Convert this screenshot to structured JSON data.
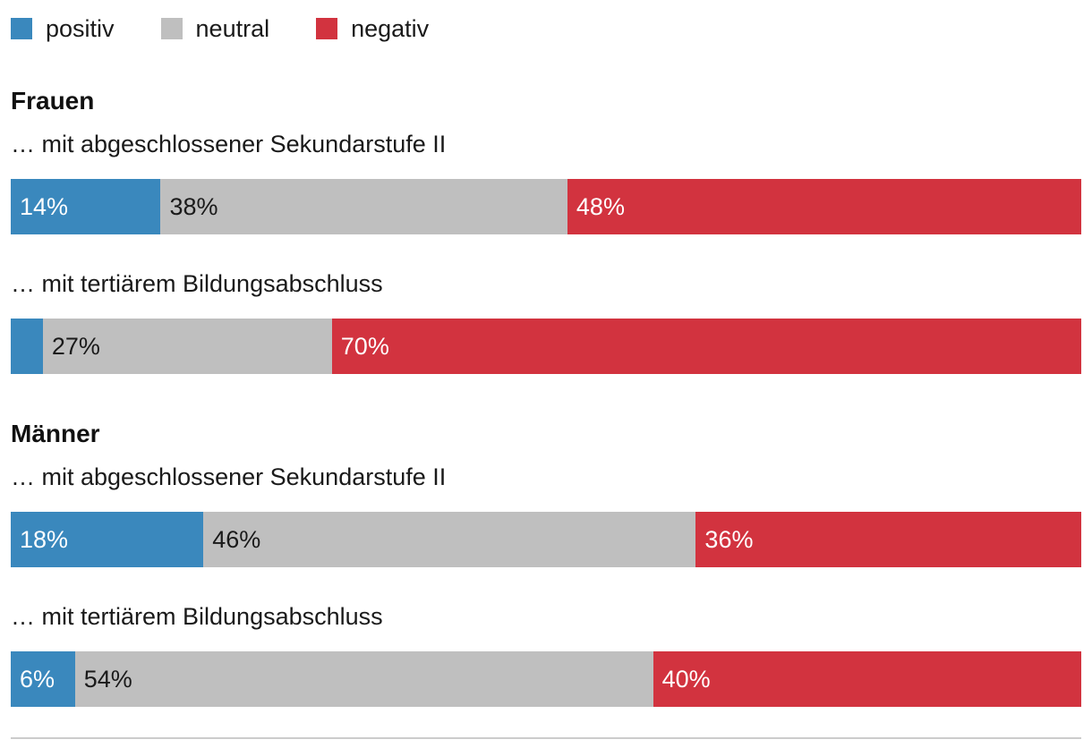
{
  "legend": {
    "items": [
      {
        "label": "positiv",
        "color": "#3a88bd"
      },
      {
        "label": "neutral",
        "color": "#bfbfbf"
      },
      {
        "label": "negativ",
        "color": "#d2333f"
      }
    ]
  },
  "chart_data": {
    "type": "bar",
    "subtype": "horizontal-stacked",
    "unit": "%",
    "xlim": [
      0,
      100
    ],
    "legend_position": "top",
    "grid": false,
    "series_names": [
      "positiv",
      "neutral",
      "negativ"
    ],
    "series_colors": {
      "positiv": "#3a88bd",
      "neutral": "#bfbfbf",
      "negativ": "#d2333f"
    },
    "series_label_colors": {
      "positiv": "#ffffff",
      "neutral": "#1a1a1a",
      "negativ": "#ffffff"
    },
    "groups": [
      {
        "title": "Frauen",
        "rows": [
          {
            "label": "… mit abgeschlossener Sekundarstufe II",
            "values": [
              14,
              38,
              48
            ],
            "labels": [
              "14%",
              "38%",
              "48%"
            ]
          },
          {
            "label": "… mit tertiärem Bildungsabschluss",
            "values": [
              3,
              27,
              70
            ],
            "labels": [
              "",
              "27%",
              "70%"
            ]
          }
        ]
      },
      {
        "title": "Männer",
        "rows": [
          {
            "label": "… mit abgeschlossener Sekundarstufe II",
            "values": [
              18,
              46,
              36
            ],
            "labels": [
              "18%",
              "46%",
              "36%"
            ]
          },
          {
            "label": "… mit tertiärem Bildungsabschluss",
            "values": [
              6,
              54,
              40
            ],
            "labels": [
              "6%",
              "54%",
              "40%"
            ]
          }
        ]
      }
    ]
  }
}
